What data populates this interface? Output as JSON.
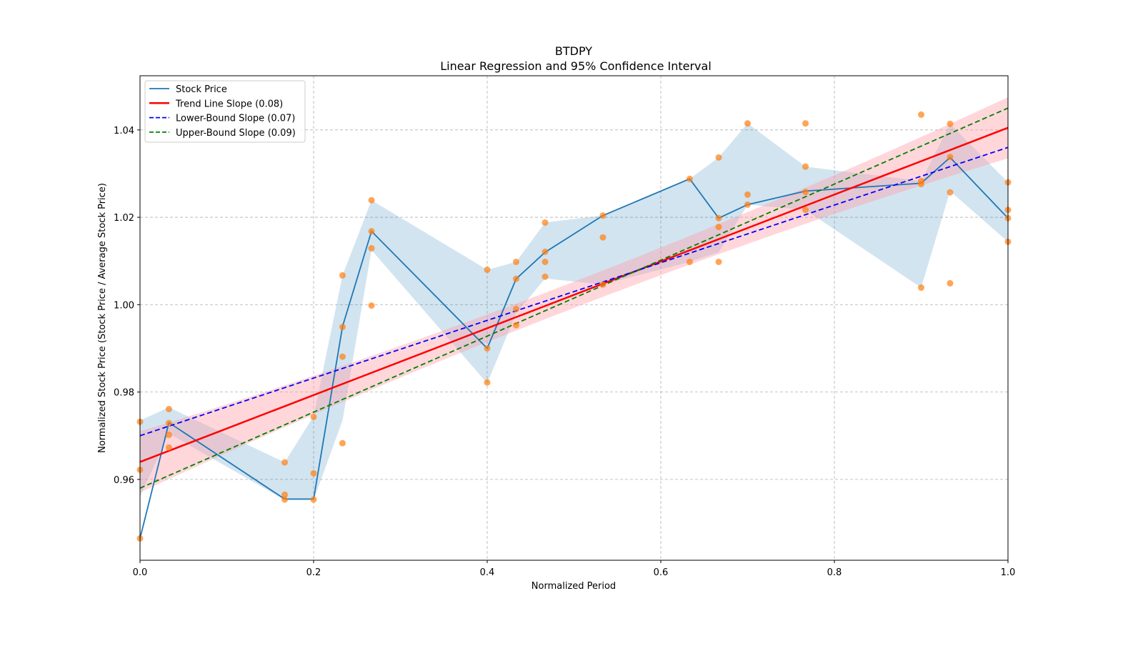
{
  "chart_data": {
    "type": "line",
    "title": "BTDPY",
    "subtitle": "Linear Regression and 95% Confidence Interval",
    "xlabel": "Normalized Period",
    "ylabel": "Normalized Stock Price (Stock Price / Average Stock Price)",
    "xlim": [
      0.0,
      1.0
    ],
    "ylim": [
      0.9415,
      1.0524
    ],
    "xticks": [
      "0.0",
      "0.2",
      "0.4",
      "0.6",
      "0.8",
      "1.0"
    ],
    "yticks": [
      "0.96",
      "0.98",
      "1.00",
      "1.02",
      "1.04"
    ],
    "grid": true,
    "legend_position": "top-left",
    "legend": [
      {
        "label": "Stock Price",
        "color": "#1f77b4",
        "style": "solid"
      },
      {
        "label": "Trend Line Slope (0.08)",
        "color": "#ff0000",
        "style": "solid"
      },
      {
        "label": "Lower-Bound Slope (0.07)",
        "color": "#0000ff",
        "style": "dashed"
      },
      {
        "label": "Upper-Bound Slope (0.09)",
        "color": "#008000",
        "style": "dashed"
      }
    ],
    "stock_price": {
      "x": [
        0,
        0.0333,
        0.1667,
        0.2,
        0.2333,
        0.2667,
        0.4,
        0.4333,
        0.4667,
        0.5333,
        0.6333,
        0.6667,
        0.7,
        0.7667,
        0.9,
        0.9333,
        1.0
      ],
      "y": [
        0.9465,
        0.973,
        0.9555,
        0.9555,
        0.995,
        1.0168,
        0.99,
        1.0059,
        1.012,
        1.0204,
        1.0288,
        1.0198,
        1.0229,
        1.026,
        1.0278,
        1.0337,
        1.0198
      ],
      "band_low": [
        0.956,
        0.9705,
        0.9553,
        0.9553,
        0.9735,
        1.0125,
        0.982,
        0.998,
        1.006,
        1.0046,
        1.0098,
        1.012,
        1.0229,
        1.0217,
        1.0039,
        1.026,
        1.0144
      ],
      "band_high": [
        0.9735,
        0.9765,
        0.9639,
        0.9745,
        1.0067,
        1.0239,
        1.008,
        1.0098,
        1.0188,
        1.0204,
        1.0288,
        1.0337,
        1.0415,
        1.0316,
        1.0283,
        1.0414,
        1.028
      ]
    },
    "scatter": [
      {
        "x": 0,
        "y": [
          0.9732,
          0.9622,
          0.9465
        ]
      },
      {
        "x": 0.0333,
        "y": [
          0.9761,
          0.9729,
          0.9702,
          0.9673
        ]
      },
      {
        "x": 0.1667,
        "y": [
          0.9639,
          0.9565,
          0.9554
        ]
      },
      {
        "x": 0.2,
        "y": [
          0.9743,
          0.9614,
          0.9554
        ]
      },
      {
        "x": 0.2333,
        "y": [
          1.0067,
          0.9949,
          0.9881,
          0.9683
        ]
      },
      {
        "x": 0.2667,
        "y": [
          1.0239,
          1.0168,
          1.0129,
          0.9998
        ]
      },
      {
        "x": 0.4,
        "y": [
          1.008,
          0.99,
          0.9822
        ]
      },
      {
        "x": 0.4333,
        "y": [
          1.0098,
          1.0059,
          0.999,
          0.9953
        ]
      },
      {
        "x": 0.4667,
        "y": [
          1.0188,
          1.0121,
          1.0098,
          1.0064
        ]
      },
      {
        "x": 0.5333,
        "y": [
          1.0204,
          1.0154,
          1.0046
        ]
      },
      {
        "x": 0.6333,
        "y": [
          1.0288,
          1.0098
        ]
      },
      {
        "x": 0.6667,
        "y": [
          1.0337,
          1.0198,
          1.0178,
          1.0098
        ]
      },
      {
        "x": 0.7,
        "y": [
          1.0415,
          1.0252,
          1.0229
        ]
      },
      {
        "x": 0.7667,
        "y": [
          1.0415,
          1.0316,
          1.0258,
          1.0217
        ]
      },
      {
        "x": 0.9,
        "y": [
          1.0435,
          1.0283,
          1.0276,
          1.0039
        ]
      },
      {
        "x": 0.9333,
        "y": [
          1.0414,
          1.0338,
          1.0257,
          1.0049
        ]
      },
      {
        "x": 1.0,
        "y": [
          1.028,
          1.0217,
          1.0198,
          1.0144
        ]
      }
    ],
    "trend_line": {
      "x": [
        0,
        1
      ],
      "y": [
        0.964,
        1.0405
      ],
      "ci_half_width": [
        0.007,
        0.003,
        0.007
      ]
    },
    "lower_bound_line": {
      "x": [
        0,
        1
      ],
      "y": [
        0.97,
        1.036
      ]
    },
    "upper_bound_line": {
      "x": [
        0,
        1
      ],
      "y": [
        0.958,
        1.045
      ]
    },
    "colors": {
      "scatter": "#ff7f0e",
      "band": "#1f77b4",
      "trend_band": "#ff9aa6"
    }
  }
}
